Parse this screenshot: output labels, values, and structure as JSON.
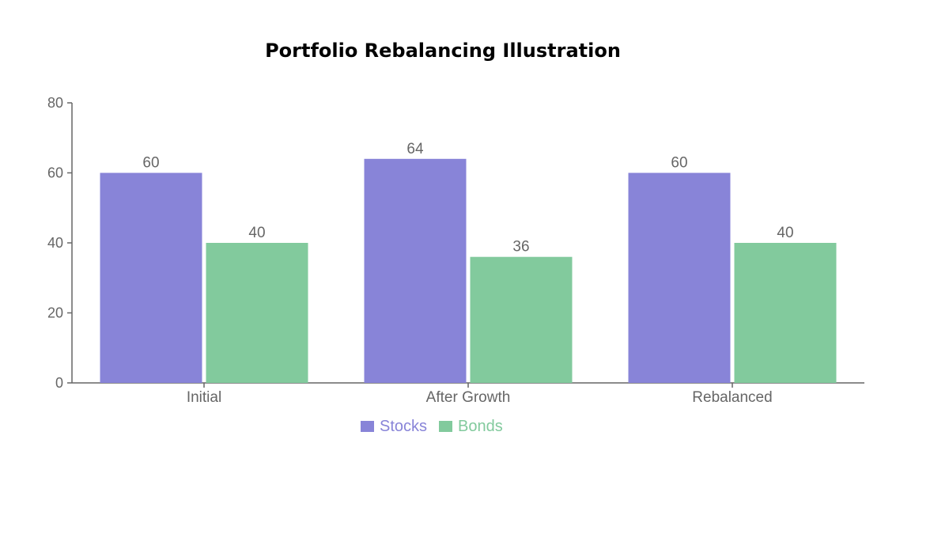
{
  "colors": {
    "stocks": "#8884d8",
    "bonds": "#82ca9d",
    "axis": "#666666"
  },
  "chart_data": {
    "type": "bar",
    "title": "Portfolio Rebalancing Illustration",
    "categories": [
      "Initial",
      "After Growth",
      "Rebalanced"
    ],
    "series": [
      {
        "name": "Stocks",
        "values": [
          60,
          64,
          60
        ]
      },
      {
        "name": "Bonds",
        "values": [
          40,
          36,
          40
        ]
      }
    ],
    "ylim": [
      0,
      80
    ],
    "yticks": [
      0,
      20,
      40,
      60,
      80
    ],
    "grid": false,
    "legend": "bottom-center",
    "data_labels": true
  }
}
